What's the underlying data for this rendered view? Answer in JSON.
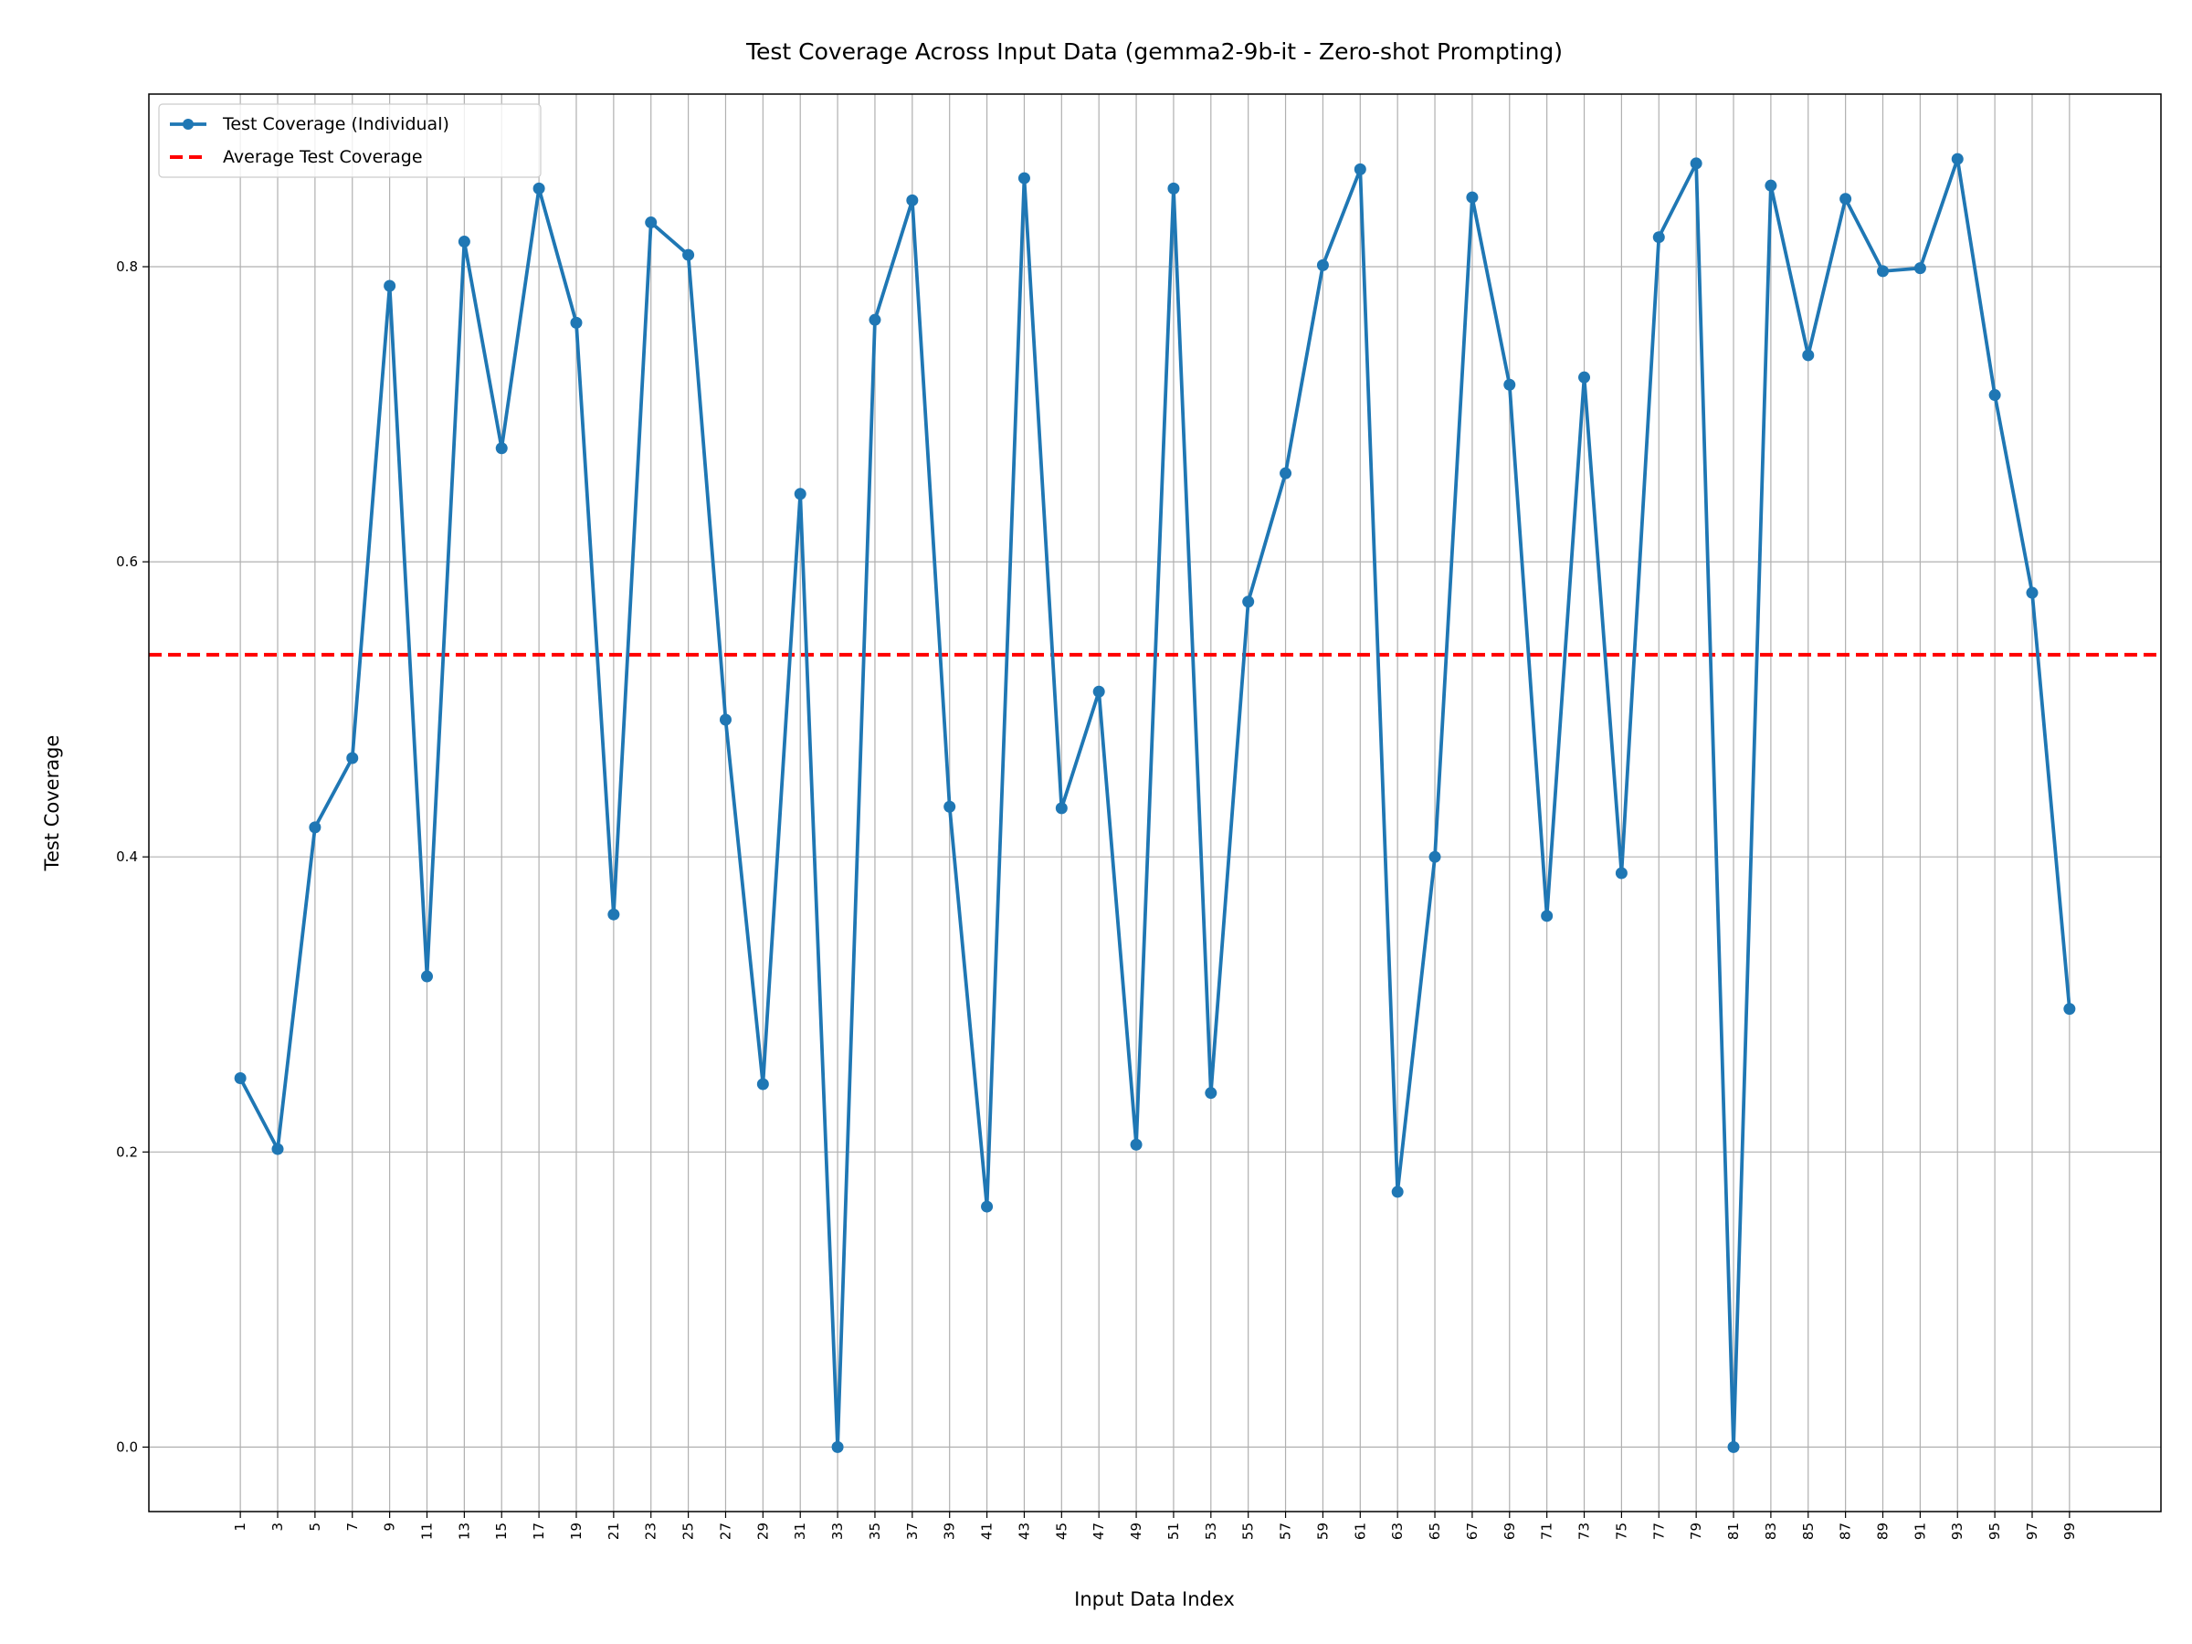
{
  "chart_data": {
    "type": "line",
    "title": "Test Coverage Across Input Data (gemma2-9b-it - Zero-shot Prompting)",
    "x_label": "Input Data Index",
    "y_label": "Test Coverage",
    "x": [
      1,
      3,
      5,
      7,
      9,
      11,
      13,
      15,
      17,
      19,
      21,
      23,
      25,
      27,
      29,
      31,
      33,
      35,
      37,
      39,
      41,
      43,
      45,
      47,
      49,
      51,
      53,
      55,
      57,
      59,
      61,
      63,
      65,
      67,
      69,
      71,
      73,
      75,
      77,
      79,
      81,
      83,
      85,
      87,
      89,
      91,
      93,
      95,
      97,
      99
    ],
    "series": [
      {
        "name": "Test Coverage (Individual)",
        "color": "#1f77b4",
        "values": [
          0.25,
          0.202,
          0.42,
          0.467,
          0.787,
          0.319,
          0.817,
          0.677,
          0.853,
          0.762,
          0.361,
          0.83,
          0.808,
          0.493,
          0.246,
          0.646,
          0.0,
          0.764,
          0.845,
          0.434,
          0.163,
          0.86,
          0.433,
          0.512,
          0.205,
          0.853,
          0.24,
          0.573,
          0.66,
          0.801,
          0.866,
          0.173,
          0.4,
          0.847,
          0.72,
          0.36,
          0.725,
          0.389,
          0.82,
          0.87,
          0.0,
          0.855,
          0.74,
          0.846,
          0.797,
          0.799,
          0.873,
          0.713,
          0.579,
          0.297
        ]
      }
    ],
    "average": {
      "name": "Average Test Coverage",
      "value": 0.537,
      "color": "#ff0000"
    },
    "xlim": [
      -3.9,
      103.9
    ],
    "xticks": [
      1,
      3,
      5,
      7,
      9,
      11,
      13,
      15,
      17,
      19,
      21,
      23,
      25,
      27,
      29,
      31,
      33,
      35,
      37,
      39,
      41,
      43,
      45,
      47,
      49,
      51,
      53,
      55,
      57,
      59,
      61,
      63,
      65,
      67,
      69,
      71,
      73,
      75,
      77,
      79,
      81,
      83,
      85,
      87,
      89,
      91,
      93,
      95,
      97,
      99
    ],
    "ylim": [
      -0.0437,
      0.917
    ],
    "yticks": [
      {
        "value": 0,
        "label": "0.0"
      },
      0.2,
      0.4,
      0.6,
      0.8
    ],
    "grid": true,
    "legend": "upper-left"
  }
}
